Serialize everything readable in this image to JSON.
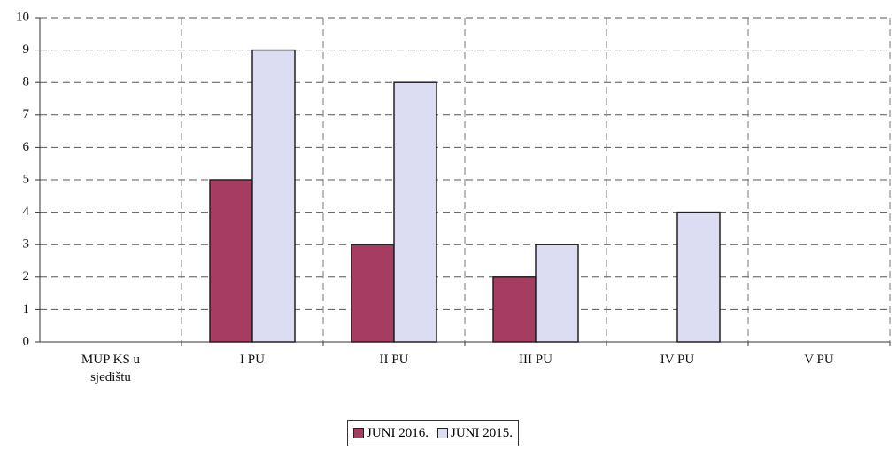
{
  "chart_data": {
    "type": "bar",
    "categories": [
      "MUP KS u sjedištu",
      "I PU",
      "II PU",
      "III PU",
      "IV PU",
      "V PU"
    ],
    "series": [
      {
        "name": "JUNI 2016.",
        "color": "#a63c62",
        "values": [
          0,
          5,
          3,
          2,
          0,
          0
        ]
      },
      {
        "name": "JUNI 2015.",
        "color": "#dcdcf2",
        "values": [
          0,
          9,
          8,
          3,
          4,
          0
        ]
      }
    ],
    "ylim": [
      0,
      10
    ],
    "yticks": [
      0,
      1,
      2,
      3,
      4,
      5,
      6,
      7,
      8,
      9,
      10
    ],
    "grid": true,
    "legend": "bottom"
  }
}
